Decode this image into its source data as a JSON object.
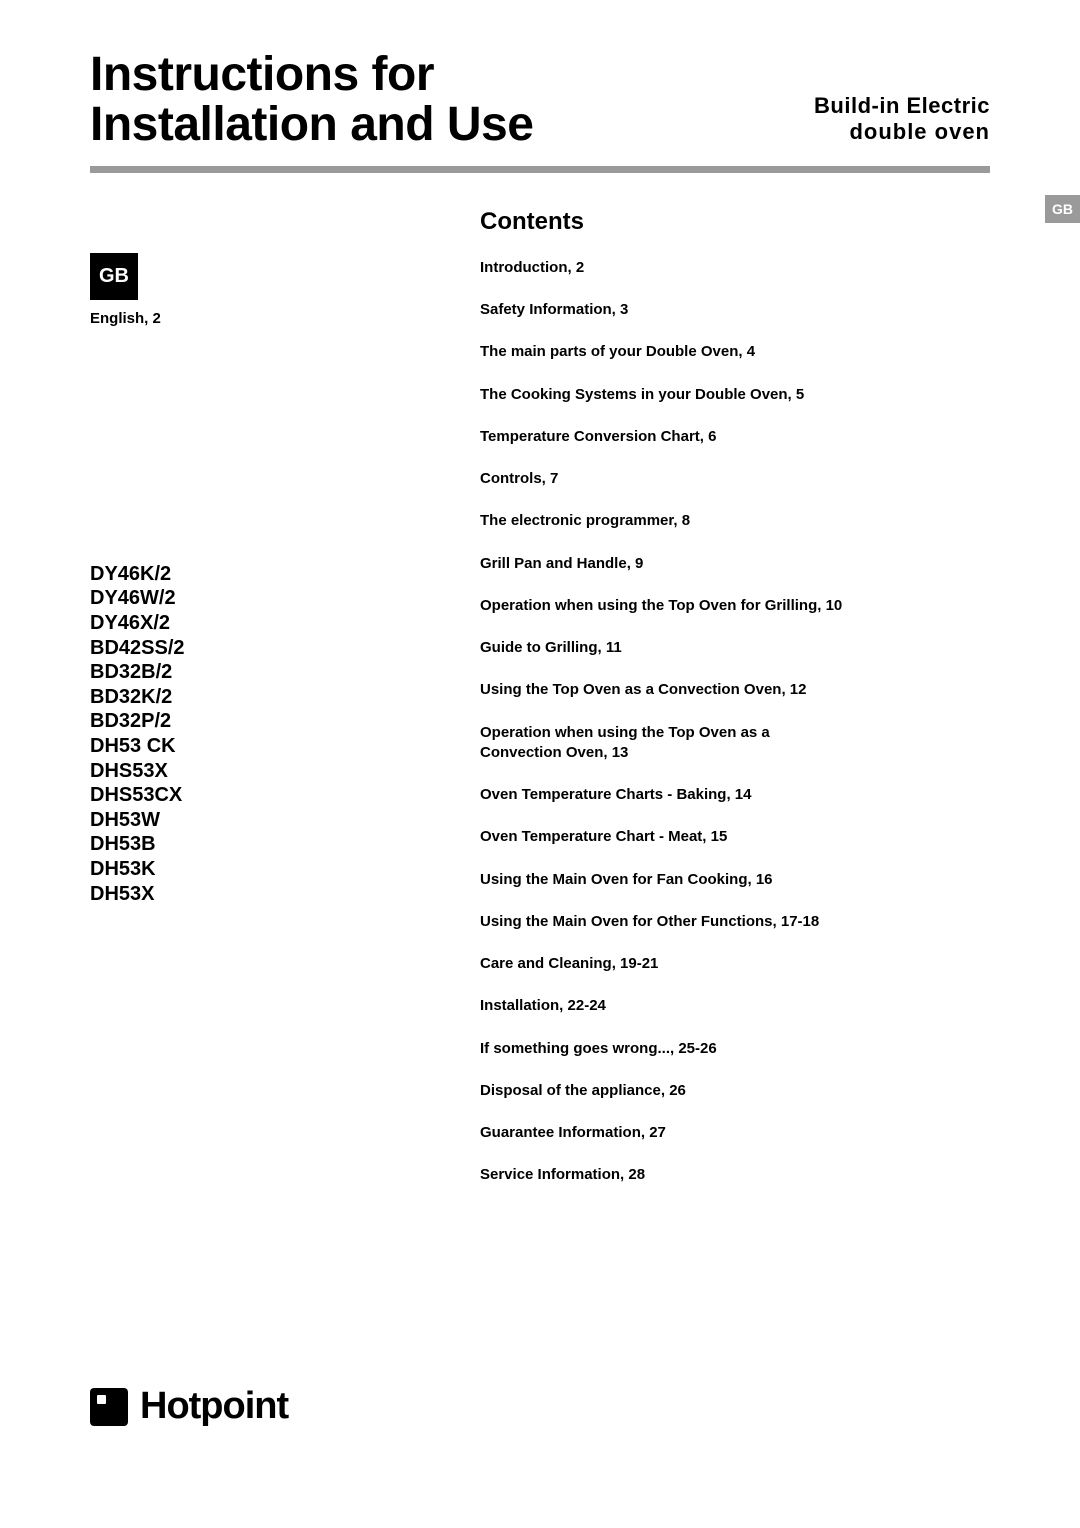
{
  "colors": {
    "text": "#000000",
    "background": "#ffffff",
    "divider": "#9a9a9a",
    "tab_bg": "#9a9a9a",
    "tab_text": "#ffffff",
    "badge_bg": "#000000",
    "badge_text": "#ffffff"
  },
  "typography": {
    "title_size": 48,
    "subtitle_size": 22,
    "heading_size": 24,
    "model_size": 20,
    "toc_size": 15,
    "label_size": 15,
    "logo_size": 38
  },
  "header": {
    "title_line1": "Instructions for",
    "title_line2": "Installation and Use",
    "subtitle_line1": "Build-in Electric",
    "subtitle_line2": "double oven"
  },
  "left": {
    "badge": "GB",
    "language": "English, 2",
    "models": [
      "DY46K/2",
      "DY46W/2",
      "DY46X/2",
      "BD42SS/2",
      "BD32B/2",
      "BD32K/2",
      "BD32P/2",
      "DH53 CK",
      "DHS53X",
      "DHS53CX",
      "DH53W",
      "DH53B",
      "DH53K",
      "DH53X"
    ]
  },
  "contents": {
    "heading": "Contents",
    "items": [
      "Introduction, 2",
      "Safety Information, 3",
      "The main parts of your Double Oven, 4",
      "The Cooking Systems in your Double Oven, 5",
      "Temperature Conversion Chart, 6",
      "Controls, 7",
      "The electronic programmer, 8",
      "Grill Pan and Handle, 9",
      "Operation when using the Top Oven for Grilling, 10",
      "Guide to Grilling, 11",
      "Using the Top Oven as a Convection Oven, 12",
      "Operation when using the Top Oven as a Convection Oven, 13",
      "Oven Temperature Charts - Baking, 14",
      "Oven Temperature Chart - Meat, 15",
      "Using the Main Oven for Fan Cooking, 16",
      "Using the Main Oven for Other Functions, 17-18",
      "Care and Cleaning, 19-21",
      "Installation, 22-24",
      "If something goes wrong..., 25-26",
      "Disposal of the appliance, 26",
      "Guarantee Information, 27",
      "Service Information, 28"
    ]
  },
  "side_tab": "GB",
  "footer": {
    "brand": "Hotpoint"
  }
}
